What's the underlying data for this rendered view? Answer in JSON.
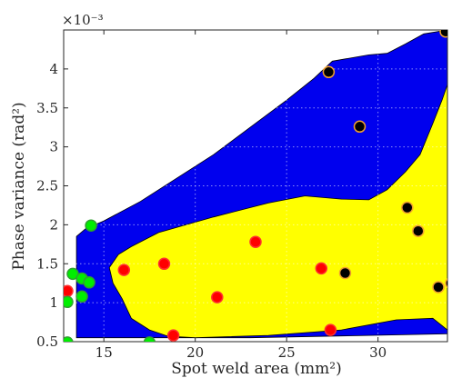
{
  "chart_data": {
    "type": "scatter",
    "title": "",
    "xlabel": "Spot weld area (mm²)",
    "ylabel": "Phase variance (rad²)",
    "y_multiplier_label": "×10⁻³",
    "xlim": [
      12.8,
      33.8
    ],
    "ylim": [
      0.0005,
      0.0045
    ],
    "x_ticks": [
      15,
      20,
      25,
      30
    ],
    "y_ticks": [
      0.0005,
      0.001,
      0.0015,
      0.002,
      0.0025,
      0.003,
      0.0035,
      0.004
    ],
    "x_tick_labels": [
      "15",
      "20",
      "25",
      "30"
    ],
    "y_tick_labels": [
      "0.5",
      "1",
      "1.5",
      "2",
      "2.5",
      "3",
      "3.5",
      "4"
    ],
    "grid": true,
    "regions": [
      {
        "color": "#0000ee",
        "polygon": [
          [
            13.5,
            0.00055
          ],
          [
            13.5,
            0.00185
          ],
          [
            14.0,
            0.00195
          ],
          [
            15.0,
            0.00205
          ],
          [
            17.0,
            0.0023
          ],
          [
            19.0,
            0.0026
          ],
          [
            21.0,
            0.0029
          ],
          [
            23.0,
            0.00325
          ],
          [
            25.0,
            0.0036
          ],
          [
            26.5,
            0.00388
          ],
          [
            27.5,
            0.0041
          ],
          [
            29.5,
            0.00418
          ],
          [
            30.5,
            0.0042
          ],
          [
            31.5,
            0.00432
          ],
          [
            32.5,
            0.00445
          ],
          [
            33.8,
            0.0045
          ],
          [
            33.8,
            0.0006
          ],
          [
            23.0,
            0.00055
          ]
        ]
      },
      {
        "color": "#ffff00",
        "polygon": [
          [
            15.3,
            0.00145
          ],
          [
            15.8,
            0.00162
          ],
          [
            16.5,
            0.00172
          ],
          [
            18.0,
            0.0019
          ],
          [
            21.0,
            0.0021
          ],
          [
            24.0,
            0.00228
          ],
          [
            26.0,
            0.00237
          ],
          [
            28.0,
            0.00233
          ],
          [
            29.5,
            0.00232
          ],
          [
            30.5,
            0.00245
          ],
          [
            31.5,
            0.00268
          ],
          [
            32.3,
            0.0029
          ],
          [
            33.0,
            0.0033
          ],
          [
            33.5,
            0.0036
          ],
          [
            33.8,
            0.0038
          ],
          [
            33.8,
            0.00065
          ],
          [
            33.0,
            0.0008
          ],
          [
            31.0,
            0.00078
          ],
          [
            28.0,
            0.00065
          ],
          [
            24.0,
            0.00058
          ],
          [
            20.0,
            0.00055
          ],
          [
            18.5,
            0.00057
          ],
          [
            17.5,
            0.00065
          ],
          [
            16.5,
            0.0008
          ],
          [
            16.0,
            0.00105
          ],
          [
            15.5,
            0.00125
          ]
        ]
      }
    ],
    "series": [
      {
        "color": "#000000",
        "edge": "#f0a030",
        "points": [
          [
            27.3,
            0.00396
          ],
          [
            29.0,
            0.00326
          ],
          [
            33.7,
            0.00448
          ],
          [
            31.6,
            0.00222
          ],
          [
            32.2,
            0.00192
          ],
          [
            28.2,
            0.00138
          ],
          [
            33.3,
            0.0012
          ],
          [
            34.0,
            0.00125
          ]
        ]
      },
      {
        "color": "#ff0000",
        "edge": "#ff3030",
        "points": [
          [
            16.1,
            0.00142
          ],
          [
            18.3,
            0.0015
          ],
          [
            23.3,
            0.00178
          ],
          [
            26.9,
            0.00144
          ],
          [
            21.2,
            0.00107
          ],
          [
            27.4,
            0.00065
          ],
          [
            18.8,
            0.00058
          ],
          [
            13.0,
            0.00115
          ]
        ]
      },
      {
        "color": "#00ee00",
        "edge": "#2fa02f",
        "points": [
          [
            14.3,
            0.00199
          ],
          [
            13.3,
            0.00137
          ],
          [
            13.8,
            0.00131
          ],
          [
            14.2,
            0.00126
          ],
          [
            13.8,
            0.00108
          ],
          [
            13.0,
            0.00101
          ],
          [
            13.0,
            0.00049
          ],
          [
            17.5,
            0.00049
          ]
        ]
      }
    ]
  }
}
